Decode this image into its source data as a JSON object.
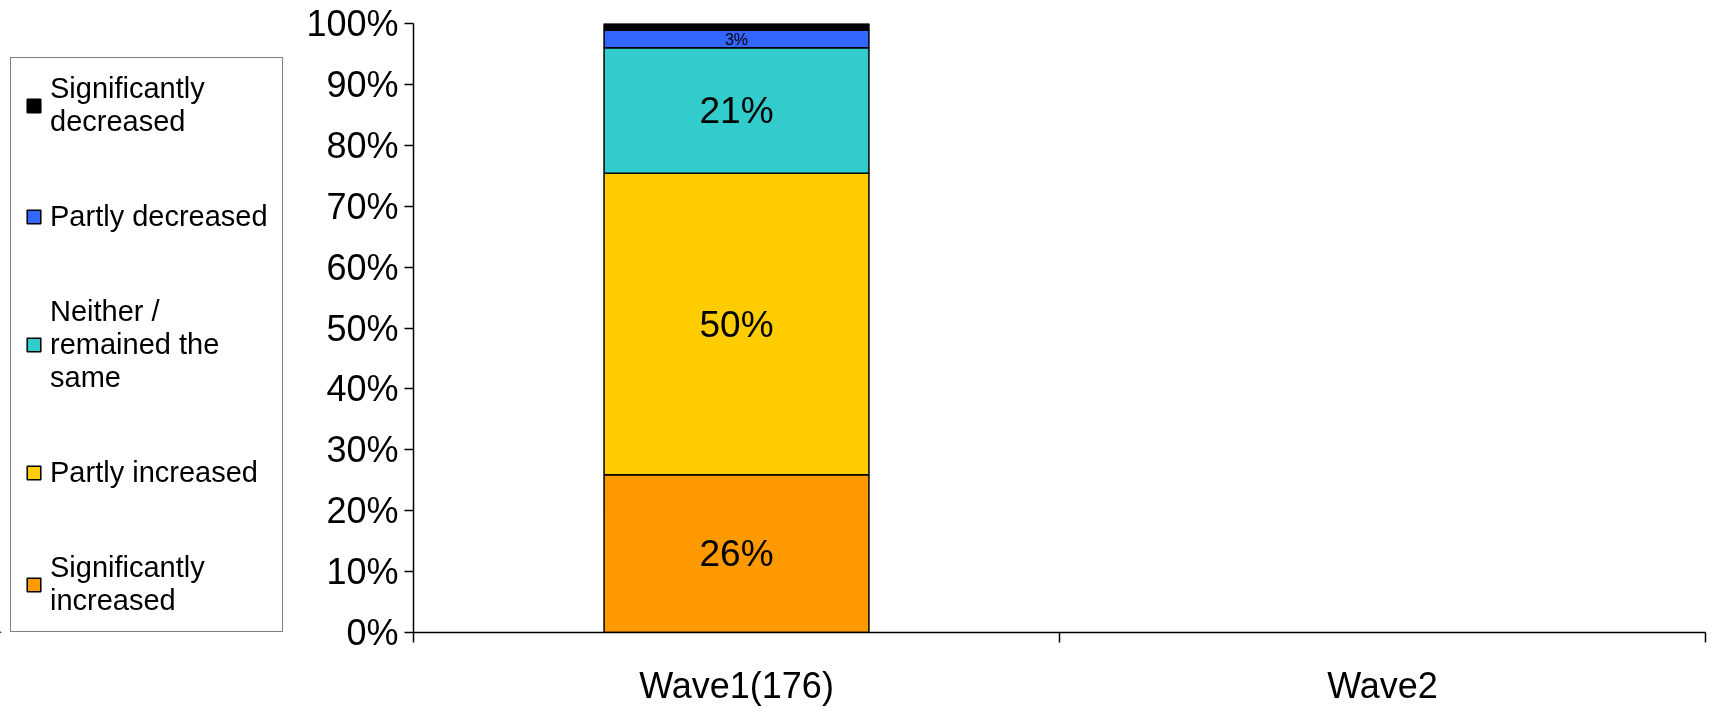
{
  "chart_data": {
    "type": "bar",
    "stacked": true,
    "categories": [
      "Wave1(176)",
      "Wave2"
    ],
    "series": [
      {
        "name": "Significantly increased",
        "color": "#ff9900",
        "values": [
          25.9,
          null
        ],
        "value_labels": [
          "26%",
          null
        ]
      },
      {
        "name": "Partly increased",
        "color": "#ffcc00",
        "values": [
          49.5,
          null
        ],
        "value_labels": [
          "50%",
          null
        ]
      },
      {
        "name": "Neither / remained the same",
        "color": "#33cccc",
        "values": [
          20.6,
          null
        ],
        "value_labels": [
          "21%",
          null
        ]
      },
      {
        "name": "Partly decreased",
        "color": "#3366ff",
        "values": [
          2.9,
          null
        ],
        "value_labels": [
          "3%",
          null
        ]
      },
      {
        "name": "Significantly decreased",
        "color": "#000000",
        "values": [
          1.1,
          null
        ],
        "value_labels": [
          null,
          null
        ]
      }
    ],
    "ylim": [
      0,
      100
    ],
    "yticks": [
      {
        "value": 0,
        "label": "0%"
      },
      {
        "value": 10,
        "label": "10%"
      },
      {
        "value": 20,
        "label": "20%"
      },
      {
        "value": 30,
        "label": "30%"
      },
      {
        "value": 40,
        "label": "40%"
      },
      {
        "value": 50,
        "label": "50%"
      },
      {
        "value": 60,
        "label": "60%"
      },
      {
        "value": 70,
        "label": "70%"
      },
      {
        "value": 80,
        "label": "80%"
      },
      {
        "value": 90,
        "label": "90%"
      },
      {
        "value": 100,
        "label": "100%"
      }
    ],
    "grid": false,
    "legend": "left"
  }
}
